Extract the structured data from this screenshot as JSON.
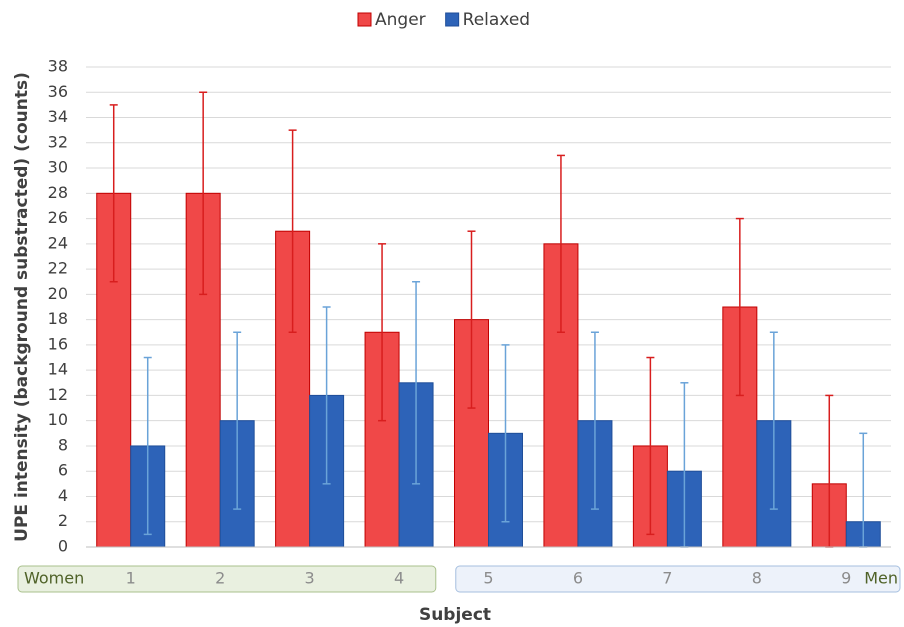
{
  "chart_data": {
    "type": "bar",
    "x_label": "Subject",
    "y_label": "UPE intensity (background substracted) (counts)",
    "categories": [
      "1",
      "2",
      "3",
      "4",
      "5",
      "6",
      "7",
      "8",
      "9"
    ],
    "groups": [
      {
        "name": "Women",
        "categories": [
          "1",
          "2",
          "3",
          "4"
        ],
        "color": "#e9f0e0",
        "border": "#a9c08c"
      },
      {
        "name": "Men",
        "categories": [
          "5",
          "6",
          "7",
          "8",
          "9"
        ],
        "color": "#edf2fa",
        "border": "#a6bfdf"
      }
    ],
    "series": [
      {
        "name": "Anger",
        "color": "#f04848",
        "border": "#c00000",
        "error_color": "#d81e1e",
        "values": [
          28,
          28,
          25,
          17,
          18,
          24,
          8,
          19,
          5
        ],
        "errors": [
          7,
          8,
          8,
          7,
          7,
          7,
          7,
          7,
          7
        ]
      },
      {
        "name": "Relaxed",
        "color": "#2d63b8",
        "border": "#1f4e99",
        "error_color": "#6aa3d8",
        "values": [
          8,
          10,
          12,
          13,
          9,
          10,
          6,
          10,
          2
        ],
        "errors": [
          7,
          7,
          7,
          8,
          7,
          7,
          7,
          7,
          7
        ]
      }
    ],
    "ylim": [
      0,
      38
    ],
    "yticks": [
      0,
      2,
      4,
      6,
      8,
      10,
      12,
      14,
      16,
      18,
      20,
      22,
      24,
      26,
      28,
      30,
      32,
      34,
      36,
      38
    ],
    "grid": true,
    "legend": "top"
  }
}
